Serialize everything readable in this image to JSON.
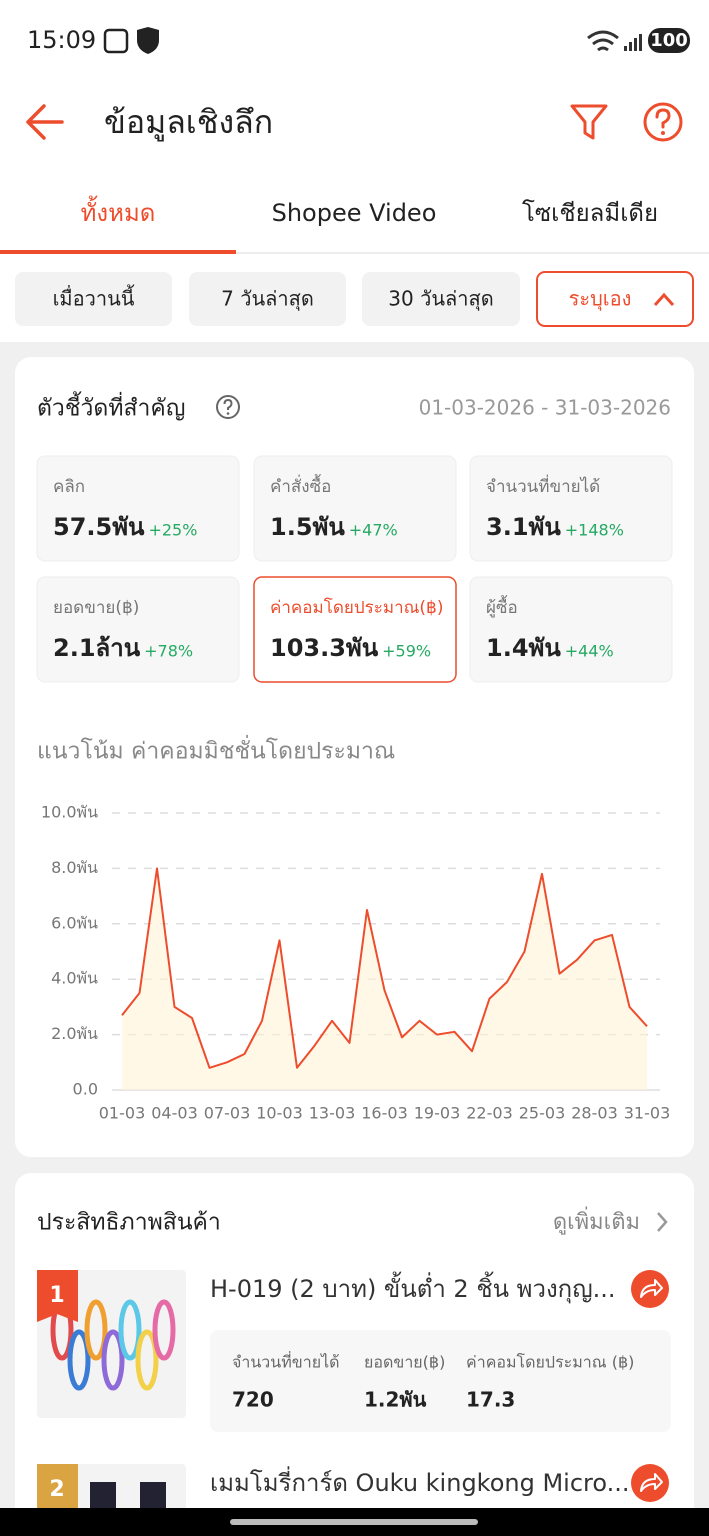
{
  "status_bar": {
    "time": "15:09",
    "battery": "100"
  },
  "header": {
    "title": "ข้อมูลเชิงลึก"
  },
  "tabs": [
    "ทั้งหมด",
    "Shopee Video",
    "โซเชียลมีเดีย"
  ],
  "date_filters": [
    "เมื่อวานนี้",
    "7 วันล่าสุด",
    "30 วันล่าสุด",
    "ระบุเอง"
  ],
  "metrics": {
    "title": "ตัวชี้วัดที่สำคัญ",
    "date_range": "01-03-2026 - 31-03-2026",
    "cards": [
      {
        "label": "คลิก",
        "value": "57.5พัน",
        "change": "+25%"
      },
      {
        "label": "คำสั่งซื้อ",
        "value": "1.5พัน",
        "change": "+47%"
      },
      {
        "label": "จำนวนที่ขายได้",
        "value": "3.1พัน",
        "change": "+148%"
      },
      {
        "label": "ยอดขาย(฿)",
        "value": "2.1ล้าน",
        "change": "+78%"
      },
      {
        "label": "ค่าคอมโดยประมาณ(฿)",
        "value": "103.3พัน",
        "change": "+59%"
      },
      {
        "label": "ผู้ซื้อ",
        "value": "1.4พัน",
        "change": "+44%"
      }
    ]
  },
  "chart_data": {
    "type": "line",
    "title": "แนวโน้ม ค่าคอมมิชชั่นโดยประมาณ",
    "categories": [
      "01-03",
      null,
      null,
      "04-03",
      null,
      null,
      "07-03",
      null,
      null,
      "10-03",
      null,
      null,
      "13-03",
      null,
      null,
      "16-03",
      null,
      null,
      "19-03",
      null,
      null,
      "22-03",
      null,
      null,
      "25-03",
      null,
      null,
      "28-03",
      null,
      null,
      "31-03"
    ],
    "values": [
      2700,
      3500,
      8000,
      3000,
      2600,
      800,
      1000,
      1300,
      2500,
      5400,
      800,
      1600,
      2500,
      1700,
      6500,
      3600,
      1900,
      2500,
      2000,
      2100,
      1400,
      3300,
      3900,
      5000,
      7800,
      4200,
      4700,
      5400,
      5600,
      3000,
      2300
    ],
    "color": "#ee4d2d",
    "ylim": [
      0,
      10000
    ],
    "yticks": [
      {
        "value": 0,
        "label": "0.0"
      },
      {
        "value": 2000,
        "label": "2.0พัน"
      },
      {
        "value": 4000,
        "label": "4.0พัน"
      },
      {
        "value": 6000,
        "label": "6.0พัน"
      },
      {
        "value": 8000,
        "label": "8.0พัน"
      },
      {
        "value": 10000,
        "label": "10.0พัน"
      }
    ],
    "grid": true
  },
  "products": {
    "title": "ประสิทธิภาพสินค้า",
    "more": "ดูเพิ่มเติม",
    "items": [
      {
        "rank": "1",
        "name": "H-019 (2 บาท) ขั้นต่ำ 2 ชิ้น พวงกุญ...",
        "stats": [
          {
            "label": "จำนวนที่ขายได้",
            "value": "720"
          },
          {
            "label": "ยอดขาย(฿)",
            "value": "1.2พัน"
          },
          {
            "label": "ค่าคอมโดยประมาณ (฿)",
            "value": "17.3"
          }
        ]
      },
      {
        "rank": "2",
        "name": "เมมโมรี่การ์ด Ouku kingkong Micro..."
      }
    ]
  }
}
